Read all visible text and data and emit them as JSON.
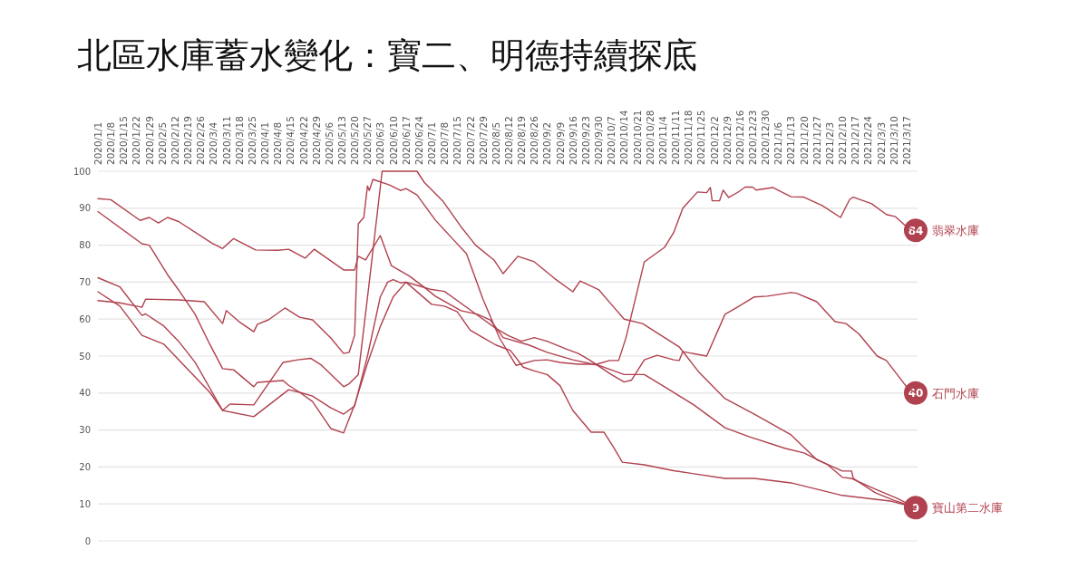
{
  "chart_data": {
    "type": "line",
    "title": "北區水庫蓄水變化：寶二、明德持續探底",
    "grid": "y",
    "legend": false,
    "line_style": "solid",
    "xlim": [
      "2020-01-01",
      "2021-03-23"
    ],
    "ylim": [
      0,
      100
    ],
    "yticks": [
      0,
      10,
      20,
      30,
      40,
      50,
      60,
      70,
      80,
      90,
      100
    ],
    "xticks": [
      {
        "value": "2020-01-01",
        "label": "2020/1/1"
      },
      {
        "value": "2020-01-08",
        "label": "2020/1/8"
      },
      {
        "value": "2020-01-15",
        "label": "2020/1/15"
      },
      {
        "value": "2020-01-22",
        "label": "2020/1/22"
      },
      {
        "value": "2020-01-29",
        "label": "2020/1/29"
      },
      {
        "value": "2020-02-05",
        "label": "2020/2/5"
      },
      {
        "value": "2020-02-12",
        "label": "2020/2/12"
      },
      {
        "value": "2020-02-19",
        "label": "2020/2/19"
      },
      {
        "value": "2020-02-26",
        "label": "2020/2/26"
      },
      {
        "value": "2020-03-04",
        "label": "2020/3/4"
      },
      {
        "value": "2020-03-11",
        "label": "2020/3/11"
      },
      {
        "value": "2020-03-18",
        "label": "2020/3/18"
      },
      {
        "value": "2020-03-25",
        "label": "2020/3/25"
      },
      {
        "value": "2020-04-01",
        "label": "2020/4/1"
      },
      {
        "value": "2020-04-08",
        "label": "2020/4/8"
      },
      {
        "value": "2020-04-15",
        "label": "2020/4/15"
      },
      {
        "value": "2020-04-22",
        "label": "2020/4/22"
      },
      {
        "value": "2020-04-29",
        "label": "2020/4/29"
      },
      {
        "value": "2020-05-06",
        "label": "2020/5/6"
      },
      {
        "value": "2020-05-13",
        "label": "2020/5/13"
      },
      {
        "value": "2020-05-20",
        "label": "2020/5/20"
      },
      {
        "value": "2020-05-27",
        "label": "2020/5/27"
      },
      {
        "value": "2020-06-03",
        "label": "2020/6/3"
      },
      {
        "value": "2020-06-10",
        "label": "2020/6/10"
      },
      {
        "value": "2020-06-17",
        "label": "2020/6/17"
      },
      {
        "value": "2020-06-24",
        "label": "2020/6/24"
      },
      {
        "value": "2020-07-01",
        "label": "2020/7/1"
      },
      {
        "value": "2020-07-08",
        "label": "2020/7/8"
      },
      {
        "value": "2020-07-15",
        "label": "2020/7/15"
      },
      {
        "value": "2020-07-22",
        "label": "2020/7/22"
      },
      {
        "value": "2020-07-29",
        "label": "2020/7/29"
      },
      {
        "value": "2020-08-05",
        "label": "2020/8/5"
      },
      {
        "value": "2020-08-12",
        "label": "2020/8/12"
      },
      {
        "value": "2020-08-19",
        "label": "2020/8/19"
      },
      {
        "value": "2020-08-26",
        "label": "2020/8/26"
      },
      {
        "value": "2020-09-02",
        "label": "2020/9/2"
      },
      {
        "value": "2020-09-09",
        "label": "2020/9/9"
      },
      {
        "value": "2020-09-16",
        "label": "2020/9/16"
      },
      {
        "value": "2020-09-23",
        "label": "2020/9/23"
      },
      {
        "value": "2020-09-30",
        "label": "2020/9/30"
      },
      {
        "value": "2020-10-07",
        "label": "2020/10/7"
      },
      {
        "value": "2020-10-14",
        "label": "2020/10/14"
      },
      {
        "value": "2020-10-21",
        "label": "2020/10/21"
      },
      {
        "value": "2020-10-28",
        "label": "2020/10/28"
      },
      {
        "value": "2020-11-04",
        "label": "2020/11/4"
      },
      {
        "value": "2020-11-11",
        "label": "2020/11/11"
      },
      {
        "value": "2020-11-18",
        "label": "2020/11/18"
      },
      {
        "value": "2020-11-25",
        "label": "2020/11/25"
      },
      {
        "value": "2020-12-02",
        "label": "2020/12/2"
      },
      {
        "value": "2020-12-09",
        "label": "2020/12/9"
      },
      {
        "value": "2020-12-16",
        "label": "2020/12/16"
      },
      {
        "value": "2020-12-23",
        "label": "2020/12/23"
      },
      {
        "value": "2020-12-30",
        "label": "2020/12/30"
      },
      {
        "value": "2021-01-06",
        "label": "2021/1/6"
      },
      {
        "value": "2021-01-13",
        "label": "2021/1/13"
      },
      {
        "value": "2021-01-20",
        "label": "2021/1/20"
      },
      {
        "value": "2021-01-27",
        "label": "2021/1/27"
      },
      {
        "value": "2021-02-03",
        "label": "2021/2/3"
      },
      {
        "value": "2021-02-10",
        "label": "2021/2/10"
      },
      {
        "value": "2021-02-17",
        "label": "2021/2/17"
      },
      {
        "value": "2021-02-24",
        "label": "2021/2/24"
      },
      {
        "value": "2021-03-03",
        "label": "2021/3/3"
      },
      {
        "value": "2021-03-10",
        "label": "2021/3/10"
      },
      {
        "value": "2021-03-17",
        "label": "2021/3/17"
      }
    ],
    "series": [
      {
        "name": "翡翠水庫",
        "color": "#b0414e",
        "x": [
          "2020-01-01",
          "2020-01-13",
          "2020-01-25",
          "2020-01-27",
          "2020-02-14",
          "2020-02-28",
          "2020-03-09",
          "2020-03-11",
          "2020-03-18",
          "2020-03-26",
          "2020-03-28",
          "2020-04-03",
          "2020-04-12",
          "2020-04-20",
          "2020-04-27",
          "2020-05-07",
          "2020-05-14",
          "2020-05-17",
          "2020-05-20",
          "2020-05-22",
          "2020-05-25",
          "2020-05-27",
          "2020-05-28",
          "2020-05-30",
          "2020-06-08",
          "2020-06-14",
          "2020-06-17",
          "2020-06-23",
          "2020-07-03",
          "2020-07-13",
          "2020-07-20",
          "2020-07-29",
          "2020-08-07",
          "2020-08-16",
          "2020-08-26",
          "2020-09-02",
          "2020-09-09",
          "2020-09-19",
          "2020-09-29",
          "2020-10-06",
          "2020-10-11",
          "2020-10-15",
          "2020-10-25",
          "2020-11-05",
          "2020-11-10",
          "2020-11-15",
          "2020-11-23",
          "2020-11-28",
          "2020-11-30",
          "2020-12-01",
          "2020-12-05",
          "2020-12-07",
          "2020-12-10",
          "2020-12-15",
          "2020-12-19",
          "2020-12-23",
          "2020-12-25",
          "2021-01-03",
          "2021-01-13",
          "2021-01-20",
          "2021-01-30",
          "2021-02-09",
          "2021-02-14",
          "2021-02-16",
          "2021-02-26",
          "2021-03-06",
          "2021-03-11",
          "2021-03-17",
          "2021-03-22"
        ],
        "values": [
          65,
          64.4,
          63.2,
          65.4,
          65.2,
          64.7,
          58.8,
          62.3,
          59.3,
          56.6,
          58.6,
          59.8,
          63,
          60.5,
          59.8,
          54.9,
          50.7,
          51,
          55.6,
          85.8,
          87.5,
          96,
          94.8,
          97.8,
          96.3,
          94.8,
          95.3,
          93.6,
          86.8,
          81.4,
          77.7,
          65.4,
          54.9,
          47.5,
          48.8,
          49,
          48.3,
          47.8,
          47.8,
          48.8,
          48.8,
          55,
          75.5,
          79.4,
          83.4,
          90,
          94.4,
          94.2,
          95.6,
          92,
          92,
          94.9,
          92.9,
          94.3,
          95.7,
          95.7,
          94.9,
          95.6,
          93.1,
          93,
          90.7,
          87.5,
          92.4,
          93,
          91.2,
          88.3,
          87.7,
          85,
          84
        ],
        "value_labels": [
          null,
          null,
          null,
          null,
          null,
          null,
          null,
          null,
          null,
          null,
          null,
          null,
          null,
          null,
          null,
          null,
          null,
          null,
          null,
          null,
          null,
          null,
          null,
          null,
          null,
          null,
          null,
          null,
          null,
          null,
          null,
          null,
          null,
          null,
          null,
          null,
          null,
          null,
          null,
          null,
          null,
          null,
          null,
          null,
          null,
          null,
          null,
          null,
          null,
          null,
          null,
          null,
          null,
          null,
          null,
          null,
          null,
          null,
          null,
          null,
          null,
          null,
          null,
          null,
          null,
          null,
          null,
          null,
          "84"
        ]
      },
      {
        "name": "石門水庫",
        "color": "#b0414e",
        "x": [
          "2020-01-01",
          "2020-01-25",
          "2020-01-29",
          "2020-02-08",
          "2020-02-14",
          "2020-02-23",
          "2020-03-02",
          "2020-03-09",
          "2020-03-15",
          "2020-03-26",
          "2020-03-28",
          "2020-04-11",
          "2020-04-14",
          "2020-04-20",
          "2020-04-27",
          "2020-05-07",
          "2020-05-14",
          "2020-05-20",
          "2020-05-27",
          "2020-06-03",
          "2020-06-07",
          "2020-06-10",
          "2020-06-14",
          "2020-06-17",
          "2020-06-24",
          "2020-07-01",
          "2020-07-08",
          "2020-07-15",
          "2020-07-22",
          "2020-07-29",
          "2020-08-05",
          "2020-08-12",
          "2020-08-19",
          "2020-08-26",
          "2020-09-02",
          "2020-09-12",
          "2020-09-19",
          "2020-09-25",
          "2020-10-07",
          "2020-10-14",
          "2020-10-18",
          "2020-10-25",
          "2020-11-01",
          "2020-11-10",
          "2020-11-13",
          "2020-11-15",
          "2020-11-28",
          "2020-12-08",
          "2020-12-14",
          "2020-12-24",
          "2020-12-31",
          "2021-01-13",
          "2021-01-16",
          "2021-01-27",
          "2021-02-06",
          "2021-02-12",
          "2021-02-19",
          "2021-03-01",
          "2021-03-06",
          "2021-03-17",
          "2021-03-22"
        ],
        "values": [
          89.1,
          80.4,
          80,
          72,
          67.9,
          61.3,
          53.2,
          46.6,
          46.3,
          41.7,
          42.9,
          43.4,
          42.1,
          40.2,
          39.2,
          36,
          34.3,
          36.5,
          50,
          66,
          70,
          70.7,
          69.8,
          70,
          69,
          68,
          67.5,
          65,
          62.5,
          60,
          57.5,
          55.5,
          54,
          55,
          54,
          52,
          50.7,
          49,
          45,
          43,
          43.5,
          49,
          50.2,
          49,
          48.8,
          51.2,
          50,
          61.3,
          63,
          66,
          66.2,
          67.2,
          67,
          64.7,
          59.3,
          58.8,
          56,
          50,
          48.8,
          41.7,
          40
        ],
        "value_labels": [
          null,
          null,
          null,
          null,
          null,
          null,
          null,
          null,
          null,
          null,
          null,
          null,
          null,
          null,
          null,
          null,
          null,
          null,
          null,
          null,
          null,
          null,
          null,
          null,
          null,
          null,
          null,
          null,
          null,
          null,
          null,
          null,
          null,
          null,
          null,
          null,
          null,
          null,
          null,
          null,
          null,
          null,
          null,
          null,
          null,
          null,
          null,
          null,
          null,
          null,
          null,
          null,
          null,
          null,
          null,
          null,
          null,
          null,
          null,
          null,
          "40"
        ]
      },
      {
        "color": "#b0414e",
        "x": [
          "2020-01-01",
          "2020-01-08",
          "2020-01-24",
          "2020-01-29",
          "2020-02-03",
          "2020-02-08",
          "2020-02-14",
          "2020-03-03",
          "2020-03-09",
          "2020-03-15",
          "2020-03-27",
          "2020-04-08",
          "2020-04-14",
          "2020-04-23",
          "2020-04-28",
          "2020-05-14",
          "2020-05-20",
          "2020-05-22",
          "2020-05-26",
          "2020-06-03",
          "2020-06-09",
          "2020-06-19",
          "2020-06-27",
          "2020-07-03",
          "2020-07-17",
          "2020-07-26",
          "2020-08-02",
          "2020-08-09",
          "2020-08-23",
          "2020-09-02",
          "2020-09-16",
          "2020-09-30",
          "2020-10-14",
          "2020-10-25",
          "2020-11-05",
          "2020-11-21",
          "2020-12-08",
          "2020-12-21",
          "2021-01-10",
          "2021-01-20",
          "2021-02-02",
          "2021-02-10",
          "2021-02-15",
          "2021-02-28",
          "2021-03-12",
          "2021-03-22"
        ],
        "values": [
          92.6,
          92.3,
          86.7,
          87.5,
          86,
          87.5,
          86.4,
          80.6,
          79.1,
          81.8,
          78.7,
          78.6,
          78.9,
          76.5,
          78.9,
          73.3,
          73.3,
          77,
          76,
          82.6,
          74.5,
          71.6,
          68.6,
          66.2,
          62.3,
          61.3,
          59.8,
          55,
          53,
          51,
          49,
          47.5,
          45,
          45,
          41.7,
          36.8,
          30.6,
          28.2,
          25,
          23.8,
          20.6,
          17.2,
          16.9,
          14,
          11.5,
          9
        ]
      },
      {
        "name": "寶山第二水庫",
        "color": "#b0414e",
        "x": [
          "2020-01-01",
          "2020-01-13",
          "2020-01-25",
          "2020-01-27",
          "2020-02-06",
          "2020-02-14",
          "2020-02-23",
          "2020-03-09",
          "2020-03-13",
          "2020-03-26",
          "2020-04-11",
          "2020-04-19",
          "2020-04-26",
          "2020-05-02",
          "2020-05-14",
          "2020-05-17",
          "2020-05-22",
          "2020-05-28",
          "2020-06-04",
          "2020-06-23",
          "2020-06-27",
          "2020-07-07",
          "2020-07-17",
          "2020-07-25",
          "2020-08-04",
          "2020-08-09",
          "2020-08-17",
          "2020-08-26",
          "2020-09-06",
          "2020-09-16",
          "2020-09-20",
          "2020-09-30",
          "2020-10-07",
          "2020-10-14",
          "2020-10-24",
          "2020-11-13",
          "2020-11-24",
          "2020-12-08",
          "2020-12-24",
          "2021-01-13",
          "2021-01-27",
          "2021-02-10",
          "2021-02-15",
          "2021-02-16",
          "2021-02-28",
          "2021-03-10",
          "2021-03-22"
        ],
        "values": [
          71.2,
          68.7,
          61,
          61.4,
          58.1,
          54,
          48.3,
          35.3,
          37,
          36.8,
          48.3,
          49,
          49.4,
          47.5,
          41.7,
          42.5,
          45,
          70,
          100,
          100,
          97,
          92,
          85,
          80,
          76,
          72.3,
          77,
          75.5,
          71,
          67.4,
          70.3,
          68,
          64,
          60,
          58.8,
          52.5,
          45.5,
          38.5,
          34.3,
          28.7,
          22,
          18.9,
          18.9,
          16.9,
          13,
          11,
          9
        ],
        "value_labels": [
          null,
          null,
          null,
          null,
          null,
          null,
          null,
          null,
          null,
          null,
          null,
          null,
          null,
          null,
          null,
          null,
          null,
          null,
          null,
          null,
          null,
          null,
          null,
          null,
          null,
          null,
          null,
          null,
          null,
          null,
          null,
          null,
          null,
          null,
          null,
          null,
          null,
          null,
          null,
          null,
          null,
          null,
          null,
          null,
          null,
          null,
          "9"
        ]
      },
      {
        "color": "#b0414e",
        "x": [
          "2020-01-01",
          "2020-01-13",
          "2020-01-25",
          "2020-02-06",
          "2020-02-14",
          "2020-03-02",
          "2020-03-09",
          "2020-03-26",
          "2020-04-14",
          "2020-04-20",
          "2020-04-27",
          "2020-05-07",
          "2020-05-14",
          "2020-05-20",
          "2020-05-27",
          "2020-06-03",
          "2020-06-10",
          "2020-06-17",
          "2020-06-24",
          "2020-07-01",
          "2020-07-08",
          "2020-07-15",
          "2020-07-22",
          "2020-07-29",
          "2020-08-05",
          "2020-08-13",
          "2020-08-20",
          "2020-08-26",
          "2020-09-02",
          "2020-09-09",
          "2020-09-16",
          "2020-09-26",
          "2020-10-03",
          "2020-10-08",
          "2020-10-13",
          "2020-10-25",
          "2020-11-10",
          "2020-12-08",
          "2020-12-24",
          "2021-01-13",
          "2021-02-10",
          "2021-03-08",
          "2021-03-22"
        ],
        "values": [
          67.4,
          63.5,
          55.6,
          53.2,
          49,
          40.2,
          35.3,
          33.6,
          40.9,
          40.2,
          37.7,
          30.4,
          29.2,
          36.8,
          48,
          58,
          66,
          70,
          67,
          64,
          63.5,
          62,
          57,
          55,
          53,
          51.5,
          47,
          46,
          45,
          42,
          35.3,
          29.4,
          29.4,
          25.5,
          21.3,
          20.6,
          19,
          16.9,
          16.9,
          15.7,
          12.3,
          10.8,
          9
        ]
      }
    ]
  }
}
